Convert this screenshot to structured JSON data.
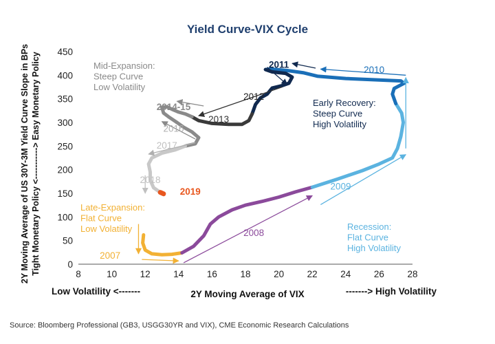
{
  "chart_data": {
    "type": "line",
    "title": "Yield Curve-VIX Cycle",
    "xlabel": "2Y Moving Average of VIX",
    "ylabel_line1": "2Y Moving Average of US 30Y-3M Yield Curve Slope in BPs",
    "ylabel_line2": "Tight Monetary Policy <-----------> Easy Monetary Policy",
    "x_left_label": "Low Volatility <-------",
    "x_right_label": "-------> High Volatility",
    "xlim": [
      8,
      28
    ],
    "ylim": [
      0,
      450
    ],
    "x_ticks": [
      "8",
      "10",
      "12",
      "14",
      "16",
      "18",
      "20",
      "22",
      "24",
      "26",
      "28"
    ],
    "y_ticks": [
      "0",
      "50",
      "100",
      "150",
      "200",
      "250",
      "300",
      "350",
      "400",
      "450"
    ],
    "source": "Source: Bloomberg Professional (GB3, USGG30YR and VIX), CME Economic Research Calculations",
    "series": [
      {
        "name": "2007",
        "color": "#f2b134",
        "points": [
          [
            11.9,
            62
          ],
          [
            11.85,
            45
          ],
          [
            12.0,
            30
          ],
          [
            12.4,
            22
          ],
          [
            13.0,
            20
          ],
          [
            13.6,
            21
          ],
          [
            14.2,
            24
          ]
        ]
      },
      {
        "name": "2008",
        "color": "#8b4a9b",
        "points": [
          [
            14.2,
            24
          ],
          [
            14.9,
            38
          ],
          [
            15.5,
            60
          ],
          [
            15.9,
            85
          ],
          [
            16.4,
            100
          ],
          [
            17.2,
            115
          ],
          [
            18.0,
            125
          ],
          [
            19.0,
            133
          ],
          [
            20.0,
            142
          ],
          [
            21.0,
            153
          ],
          [
            22.0,
            163
          ]
        ]
      },
      {
        "name": "2009",
        "color": "#5bb3e0",
        "points": [
          [
            22.0,
            163
          ],
          [
            23.5,
            180
          ],
          [
            25.0,
            198
          ],
          [
            26.0,
            212
          ],
          [
            26.8,
            225
          ],
          [
            27.1,
            245
          ],
          [
            27.3,
            270
          ],
          [
            27.45,
            300
          ],
          [
            27.35,
            320
          ],
          [
            27.0,
            340
          ]
        ]
      },
      {
        "name": "2010",
        "color": "#1a6fb8",
        "points": [
          [
            27.0,
            340
          ],
          [
            26.8,
            360
          ],
          [
            26.9,
            372
          ],
          [
            27.5,
            383
          ],
          [
            27.3,
            388
          ],
          [
            26.0,
            390
          ],
          [
            24.0,
            393
          ],
          [
            22.3,
            398
          ],
          [
            21.5,
            405
          ],
          [
            20.5,
            410
          ],
          [
            19.5,
            413
          ],
          [
            19.2,
            412
          ]
        ]
      },
      {
        "name": "2011",
        "color": "#10294f",
        "points": [
          [
            19.2,
            412
          ],
          [
            19.6,
            407
          ],
          [
            20.4,
            404
          ],
          [
            20.8,
            396
          ],
          [
            20.6,
            383
          ],
          [
            20.2,
            378
          ],
          [
            19.6,
            373
          ],
          [
            19.3,
            360
          ],
          [
            18.9,
            352
          ],
          [
            18.6,
            338
          ],
          [
            18.4,
            318
          ]
        ]
      },
      {
        "name": "2012",
        "color": "#3a3a3a",
        "points": [
          [
            18.4,
            318
          ],
          [
            18.2,
            304
          ],
          [
            17.8,
            296
          ],
          [
            17.0,
            296
          ],
          [
            16.0,
            298
          ],
          [
            15.2,
            304
          ],
          [
            14.8,
            312
          ]
        ]
      },
      {
        "name": "2013-2017",
        "color": "#8a8a8a",
        "points": [
          [
            14.8,
            312
          ],
          [
            14.4,
            318
          ],
          [
            14.0,
            322
          ],
          [
            13.6,
            328
          ],
          [
            13.3,
            333
          ],
          [
            13.0,
            332
          ],
          [
            13.1,
            320
          ],
          [
            13.4,
            312
          ],
          [
            13.9,
            300
          ],
          [
            14.3,
            290
          ],
          [
            14.8,
            280
          ],
          [
            15.2,
            268
          ],
          [
            15.0,
            255
          ],
          [
            14.4,
            250
          ]
        ]
      },
      {
        "name": "2017-2018",
        "color": "#c8c8c8",
        "points": [
          [
            14.4,
            250
          ],
          [
            13.8,
            242
          ],
          [
            13.0,
            235
          ],
          [
            12.4,
            225
          ],
          [
            12.2,
            212
          ],
          [
            12.3,
            195
          ],
          [
            12.3,
            178
          ],
          [
            12.5,
            162
          ],
          [
            12.9,
            152
          ]
        ]
      },
      {
        "name": "2019",
        "color": "#e8571f",
        "points": [
          [
            12.9,
            152
          ],
          [
            13.1,
            149
          ]
        ]
      }
    ],
    "annotations": [
      {
        "text": "2007",
        "color": "#f2b134"
      },
      {
        "text": "2008",
        "color": "#8b4a9b"
      },
      {
        "text": "2009",
        "color": "#5bb3e0"
      },
      {
        "text": "2010",
        "color": "#1a6fb8"
      },
      {
        "text": "2011",
        "color": "#10294f"
      },
      {
        "text": "2012",
        "color": "#222222"
      },
      {
        "text": "2013",
        "color": "#333333"
      },
      {
        "text": "2014-15",
        "color": "#8a8a8a"
      },
      {
        "text": "2016",
        "color": "#b0b0b0"
      },
      {
        "text": "2017",
        "color": "#c0c0c0"
      },
      {
        "text": "2018",
        "color": "#c0c0c0"
      },
      {
        "text": "2019",
        "color": "#e8571f"
      }
    ],
    "phases": [
      {
        "lines": [
          "Mid-Expansion:",
          "Steep Curve",
          "Low Volatility"
        ],
        "color": "#8a8a8a"
      },
      {
        "lines": [
          "Early Recovery:",
          "Steep Curve",
          "High Volatility"
        ],
        "color": "#10294f"
      },
      {
        "lines": [
          "Late-Expansion:",
          "Flat Curve",
          "Low Volatility"
        ],
        "color": "#f2b134"
      },
      {
        "lines": [
          "Recession:",
          "Flat Curve",
          "High Volatility"
        ],
        "color": "#5bb3e0"
      }
    ]
  }
}
